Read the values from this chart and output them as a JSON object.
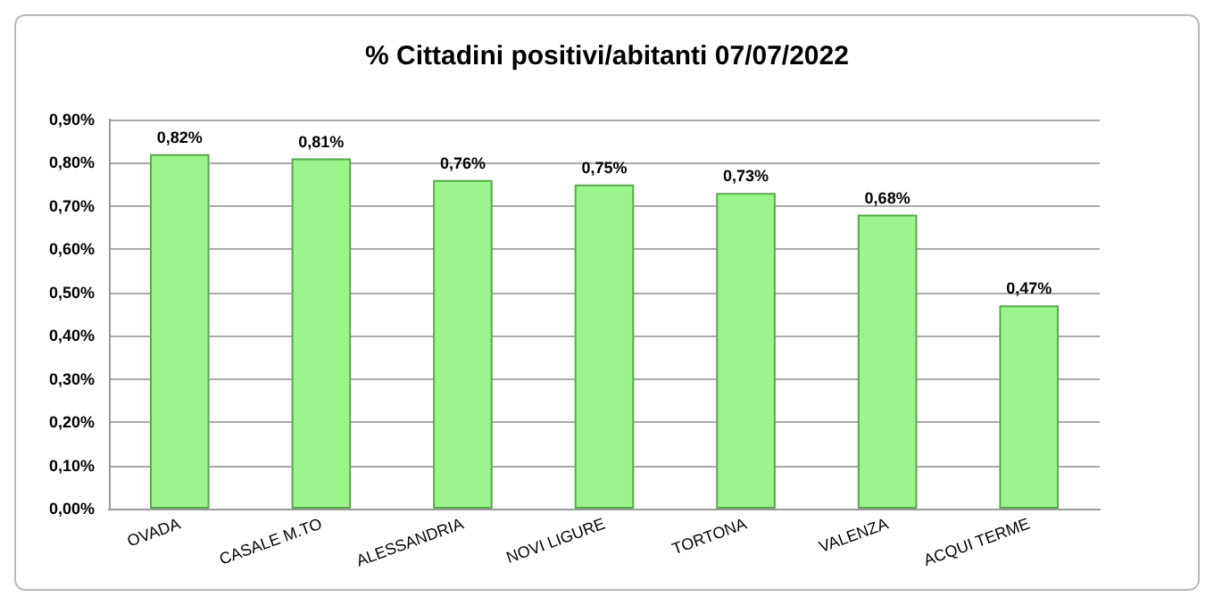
{
  "chart_data": {
    "type": "bar",
    "title": "% Cittadini positivi/abitanti 07/07/2022",
    "categories": [
      "OVADA",
      "CASALE M.TO",
      "ALESSANDRIA",
      "NOVI LIGURE",
      "TORTONA",
      "VALENZA",
      "ACQUI TERME"
    ],
    "values": [
      0.82,
      0.81,
      0.76,
      0.75,
      0.73,
      0.68,
      0.47
    ],
    "value_labels": [
      "0,82%",
      "0,81%",
      "0,76%",
      "0,75%",
      "0,73%",
      "0,68%",
      "0,47%"
    ],
    "color": "#9cf58c",
    "ylim": [
      0,
      0.9
    ],
    "yticks": [
      {
        "value": 0,
        "label": "0,00%"
      },
      {
        "value": 0.1,
        "label": "0,10%"
      },
      {
        "value": 0.2,
        "label": "0,20%"
      },
      {
        "value": 0.3,
        "label": "0,30%"
      },
      {
        "value": 0.4,
        "label": "0,40%"
      },
      {
        "value": 0.5,
        "label": "0,50%"
      },
      {
        "value": 0.6,
        "label": "0,60%"
      },
      {
        "value": 0.7,
        "label": "0,70%"
      },
      {
        "value": 0.8,
        "label": "0,80%"
      },
      {
        "value": 0.9,
        "label": "0,90%"
      }
    ],
    "grid": "y"
  }
}
